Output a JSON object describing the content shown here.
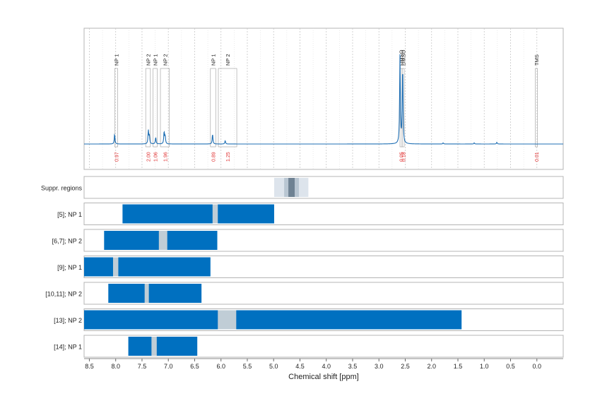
{
  "chart_data": {
    "type": "line",
    "x_label": "Chemical shift [ppm]",
    "x_ticks": [
      8.5,
      8.0,
      7.5,
      7.0,
      6.5,
      6.0,
      5.5,
      5.0,
      4.5,
      4.0,
      3.5,
      3.0,
      2.5,
      2.0,
      1.5,
      1.0,
      0.5,
      0.0
    ],
    "x_tick_labels": [
      "8.5",
      "8.0",
      "7.5",
      "7.0",
      "6.5",
      "6.0",
      "5.5",
      "5.0",
      "4.5",
      "4.0",
      "3.5",
      "3.0",
      "2.5",
      "2.0",
      "1.5",
      "1.0",
      "0.5",
      "0.0"
    ],
    "xlim": [
      8.6,
      -0.5
    ],
    "grid": true,
    "colors": {
      "spectrum": "#1f6fb4",
      "bar": "#0070c0",
      "gap": "#c0cdd6",
      "integral": "#e03030",
      "frame": "#b4b4b4"
    },
    "spectrum": {
      "baseline_peaks": [
        {
          "ppm": 8.02,
          "height": 0.09
        },
        {
          "ppm": 7.38,
          "height": 0.12
        },
        {
          "ppm": 7.36,
          "height": 0.07
        },
        {
          "ppm": 7.24,
          "height": 0.06
        },
        {
          "ppm": 7.08,
          "height": 0.11
        },
        {
          "ppm": 7.06,
          "height": 0.07
        },
        {
          "ppm": 6.16,
          "height": 0.09
        },
        {
          "ppm": 5.92,
          "height": 0.03
        },
        {
          "ppm": 2.6,
          "height": 0.78
        },
        {
          "ppm": 2.55,
          "height": 0.7
        },
        {
          "ppm": 1.78,
          "height": 0.01
        },
        {
          "ppm": 1.19,
          "height": 0.01
        },
        {
          "ppm": 0.76,
          "height": 0.015
        }
      ],
      "annotations": [
        {
          "label": "NP 1",
          "from": 8.02,
          "to": 7.96,
          "integral": "0.97"
        },
        {
          "label": "NP 2",
          "from": 7.43,
          "to": 7.34,
          "integral": "2.00"
        },
        {
          "label": "NP 1",
          "from": 7.29,
          "to": 7.21,
          "integral": "1.06"
        },
        {
          "label": "NP 2",
          "from": 7.15,
          "to": 6.98,
          "integral": "1.96"
        },
        {
          "label": "NP 1",
          "from": 6.2,
          "to": 6.1,
          "integral": "0.89"
        },
        {
          "label": "NP 2",
          "from": 6.05,
          "to": 5.7,
          "integral": "1.25"
        },
        {
          "label": "DMSO",
          "from": 2.6,
          "to": 2.56,
          "integral": "0.05"
        },
        {
          "label": "DMSO",
          "from": 2.56,
          "to": 2.52,
          "integral": "0.18"
        },
        {
          "label": "TMS",
          "from": 0.03,
          "to": -0.01,
          "integral": "0.01"
        }
      ]
    },
    "suppressed_regions": {
      "label": "Suppr. regions",
      "outer": [
        4.99,
        4.34
      ],
      "middle": [
        4.8,
        4.52
      ],
      "inner": [
        4.72,
        4.6
      ]
    },
    "rows": [
      {
        "label": "[5]; NP 1",
        "range": [
          7.87,
          4.99
        ],
        "gap": [
          6.16,
          6.06
        ]
      },
      {
        "label": "[6,7]; NP 2",
        "range": [
          8.22,
          6.07
        ],
        "gap": [
          7.18,
          7.02
        ]
      },
      {
        "label": "[9]; NP 1",
        "range": [
          8.6,
          6.2
        ],
        "gap": [
          8.05,
          7.95
        ]
      },
      {
        "label": "[10,11]; NP 2",
        "range": [
          8.14,
          6.37
        ],
        "gap": [
          7.45,
          7.37
        ]
      },
      {
        "label": "[13]; NP 2",
        "range": [
          8.6,
          1.43
        ],
        "gap": [
          6.06,
          5.71
        ]
      },
      {
        "label": "[14]; NP 1",
        "range": [
          7.76,
          6.45
        ],
        "gap": [
          7.32,
          7.22
        ]
      }
    ]
  }
}
